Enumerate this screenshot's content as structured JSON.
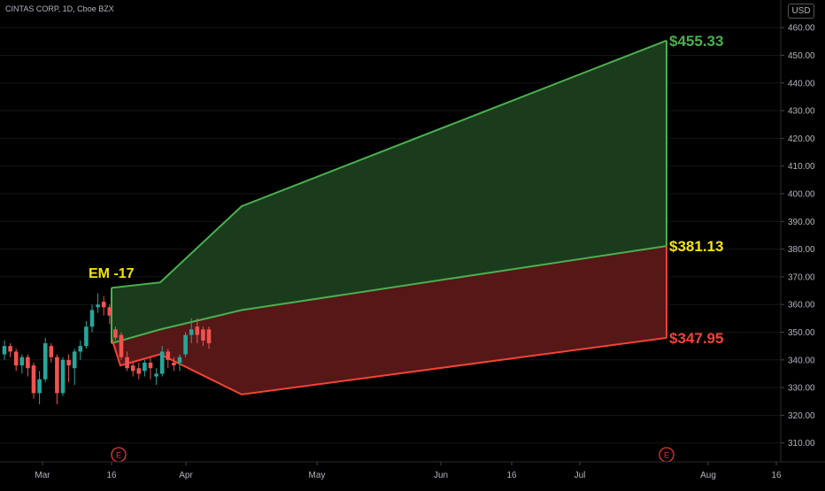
{
  "header": {
    "symbol_line": "CINTAS CORP, 1D, Cboe BZX",
    "currency": "USD"
  },
  "chart_data": {
    "type": "candlestick",
    "ylim": [
      302,
      465
    ],
    "y_ticks": [
      "460.00",
      "450.00",
      "440.00",
      "430.00",
      "420.00",
      "410.00",
      "400.00",
      "390.00",
      "380.00",
      "370.00",
      "360.00",
      "350.00",
      "340.00",
      "330.00",
      "320.00",
      "310.00"
    ],
    "x_ticks": [
      "Mar",
      "16",
      "Apr",
      "May",
      "Jun",
      "16",
      "Jul",
      "Aug",
      "16"
    ],
    "candles": [
      {
        "o": 342,
        "c": 345,
        "h": 347,
        "l": 340
      },
      {
        "o": 345,
        "c": 343,
        "h": 346,
        "l": 341
      },
      {
        "o": 343,
        "c": 338,
        "h": 344,
        "l": 336
      },
      {
        "o": 338,
        "c": 341,
        "h": 342,
        "l": 335
      },
      {
        "o": 341,
        "c": 337,
        "h": 342,
        "l": 334
      },
      {
        "o": 338,
        "c": 328,
        "h": 339,
        "l": 326
      },
      {
        "o": 328,
        "c": 333,
        "h": 336,
        "l": 324
      },
      {
        "o": 333,
        "c": 346,
        "h": 348,
        "l": 332
      },
      {
        "o": 345,
        "c": 341,
        "h": 346,
        "l": 339
      },
      {
        "o": 341,
        "c": 328,
        "h": 342,
        "l": 324
      },
      {
        "o": 328,
        "c": 340,
        "h": 341,
        "l": 327
      },
      {
        "o": 340,
        "c": 338,
        "h": 342,
        "l": 332
      },
      {
        "o": 337,
        "c": 343,
        "h": 344,
        "l": 331
      },
      {
        "o": 343,
        "c": 345,
        "h": 347,
        "l": 340
      },
      {
        "o": 345,
        "c": 352,
        "h": 354,
        "l": 344
      },
      {
        "o": 352,
        "c": 358,
        "h": 360,
        "l": 350
      },
      {
        "o": 359,
        "c": 360,
        "h": 364,
        "l": 357
      },
      {
        "o": 361,
        "c": 359,
        "h": 363,
        "l": 356
      },
      {
        "o": 359,
        "c": 356,
        "h": 360,
        "l": 353
      },
      {
        "o": 351,
        "c": 348,
        "h": 352,
        "l": 347
      },
      {
        "o": 349,
        "c": 341,
        "h": 350,
        "l": 340
      },
      {
        "o": 341,
        "c": 337,
        "h": 343,
        "l": 336
      },
      {
        "o": 338,
        "c": 336,
        "h": 339,
        "l": 334
      },
      {
        "o": 337,
        "c": 335,
        "h": 339,
        "l": 333
      },
      {
        "o": 336,
        "c": 339,
        "h": 340,
        "l": 334
      },
      {
        "o": 339,
        "c": 337,
        "h": 341,
        "l": 333
      },
      {
        "o": 334,
        "c": 335,
        "h": 337,
        "l": 331
      },
      {
        "o": 335,
        "c": 343,
        "h": 345,
        "l": 334
      },
      {
        "o": 343,
        "c": 340,
        "h": 344,
        "l": 337
      },
      {
        "o": 339,
        "c": 338,
        "h": 341,
        "l": 336
      },
      {
        "o": 339,
        "c": 341,
        "h": 342,
        "l": 336
      },
      {
        "o": 342,
        "c": 349,
        "h": 350,
        "l": 341
      },
      {
        "o": 349,
        "c": 351,
        "h": 355,
        "l": 346
      },
      {
        "o": 352,
        "c": 349,
        "h": 355,
        "l": 346
      },
      {
        "o": 351,
        "c": 347,
        "h": 352,
        "l": 345
      },
      {
        "o": 351,
        "c": 346,
        "h": 352,
        "l": 344
      }
    ],
    "em_polygon": {
      "upper": [
        [
          0,
          366
        ],
        [
          55,
          368
        ],
        [
          147,
          395.5
        ],
        [
          627,
          455.33
        ]
      ],
      "mid": [
        [
          0,
          346
        ],
        [
          55,
          351
        ],
        [
          147,
          358
        ],
        [
          627,
          381.13
        ]
      ],
      "lower": [
        [
          0,
          348
        ],
        [
          10,
          338
        ],
        [
          55,
          342
        ],
        [
          147,
          327.5
        ],
        [
          627,
          347.95
        ]
      ]
    },
    "annotations": [
      {
        "text": "EM -17",
        "color": "#f5e50a"
      },
      {
        "text": "$455.33",
        "value": 455.33,
        "color": "#4caf50"
      },
      {
        "text": "$381.13",
        "value": 381.13,
        "color": "#f5e50a"
      },
      {
        "text": "$347.95",
        "value": 347.95,
        "color": "#f44336"
      }
    ],
    "earnings_markers": [
      "E",
      "E"
    ],
    "colors": {
      "up": "#26a69a",
      "down": "#ef5350",
      "upper_zone_fill": "#1b3f1e",
      "upper_zone_stroke": "#4caf50",
      "lower_zone_fill": "#5b1818",
      "lower_zone_stroke": "#f44336",
      "axis_text": "#b2b5be",
      "grid": "#151515"
    }
  }
}
